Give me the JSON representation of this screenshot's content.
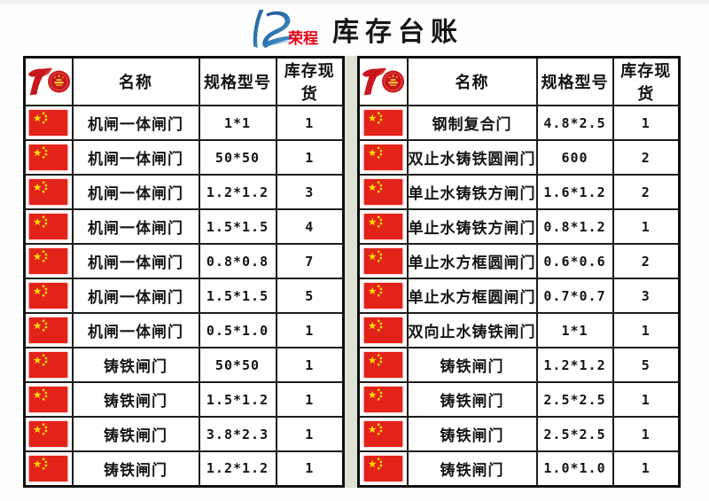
{
  "header": {
    "brand": "荣程",
    "title": "库存台账",
    "brand_color": "#e60012",
    "logo_blue": "#1f64ad"
  },
  "columns": [
    "名称",
    "规格型号",
    "库存现货"
  ],
  "icons": {
    "corner_header": "china-70th-anniversary-emblem",
    "row_marker": "china-flag",
    "brand_mark": "rongcheng-swoosh"
  },
  "colors": {
    "flag_red": "#e2231a",
    "star_gold": "#ffde00",
    "emblem_red": "#c8161d",
    "divider_green": "#dce2d4",
    "border_black": "#1d1d1d"
  },
  "tables": {
    "left": {
      "rows": [
        {
          "name": "机闸一体闸门",
          "spec": "1*1",
          "stock": "1"
        },
        {
          "name": "机闸一体闸门",
          "spec": "50*50",
          "stock": "1"
        },
        {
          "name": "机闸一体闸门",
          "spec": "1.2*1.2",
          "stock": "3"
        },
        {
          "name": "机闸一体闸门",
          "spec": "1.5*1.5",
          "stock": "4"
        },
        {
          "name": "机闸一体闸门",
          "spec": "0.8*0.8",
          "stock": "7"
        },
        {
          "name": "机闸一体闸门",
          "spec": "1.5*1.5",
          "stock": "5"
        },
        {
          "name": "机闸一体闸门",
          "spec": "0.5*1.0",
          "stock": "1"
        },
        {
          "name": "铸铁闸门",
          "spec": "50*50",
          "stock": "1"
        },
        {
          "name": "铸铁闸门",
          "spec": "1.5*1.2",
          "stock": "1"
        },
        {
          "name": "铸铁闸门",
          "spec": "3.8*2.3",
          "stock": "1"
        },
        {
          "name": "铸铁闸门",
          "spec": "1.2*1.2",
          "stock": "1"
        }
      ]
    },
    "right": {
      "rows": [
        {
          "name": "钢制复合门",
          "spec": "4.8*2.5",
          "stock": "1"
        },
        {
          "name": "双止水铸铁圆闸门",
          "spec": "600",
          "stock": "2"
        },
        {
          "name": "单止水铸铁方闸门",
          "spec": "1.6*1.2",
          "stock": "2"
        },
        {
          "name": "单止水铸铁方闸门",
          "spec": "0.8*1.2",
          "stock": "1"
        },
        {
          "name": "单止水方框圆闸门",
          "spec": "0.6*0.6",
          "stock": "2"
        },
        {
          "name": "单止水方框圆闸门",
          "spec": "0.7*0.7",
          "stock": "3"
        },
        {
          "name": "双向止水铸铁闸门",
          "spec": "1*1",
          "stock": "1"
        },
        {
          "name": "铸铁闸门",
          "spec": "1.2*1.2",
          "stock": "5"
        },
        {
          "name": "铸铁闸门",
          "spec": "2.5*2.5",
          "stock": "1"
        },
        {
          "name": "铸铁闸门",
          "spec": "2.5*2.5",
          "stock": "1"
        },
        {
          "name": "铸铁闸门",
          "spec": "1.0*1.0",
          "stock": "1"
        }
      ]
    }
  }
}
